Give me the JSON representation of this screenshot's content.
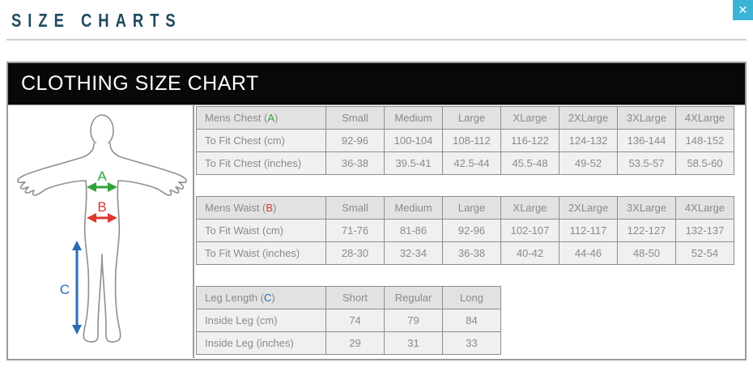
{
  "page": {
    "title": "SIZE CHARTS",
    "close_glyph": "✕"
  },
  "panel": {
    "header": "CLOTHING SIZE CHART"
  },
  "colors": {
    "title_teal": "#1e4a5e",
    "close_cyan": "#3cb4d7",
    "table_border": "#8d8d8d",
    "header_cell_bg": "#e2e2e2",
    "data_cell_bg": "#f0f0f0",
    "table_text": "#8a8a8a",
    "chest_green": "#2fa43c",
    "waist_red": "#e0382e",
    "leg_blue": "#2a6cb5"
  },
  "diagram": {
    "figure": "male-body-outline-front",
    "labels": [
      {
        "id": "A",
        "meaning": "chest",
        "color": "#2fa43c"
      },
      {
        "id": "B",
        "meaning": "waist",
        "color": "#e0382e"
      },
      {
        "id": "C",
        "meaning": "inside-leg",
        "color": "#2a6cb5"
      }
    ]
  },
  "tables": [
    {
      "label": {
        "prefix": "Mens Chest (",
        "letter": "A",
        "suffix": ")",
        "color": "#2fa43c"
      },
      "columns": [
        "Small",
        "Medium",
        "Large",
        "XLarge",
        "2XLarge",
        "3XLarge",
        "4XLarge"
      ],
      "rows": [
        {
          "label": "To Fit Chest (cm)",
          "values": [
            "92-96",
            "100-104",
            "108-112",
            "116-122",
            "124-132",
            "136-144",
            "148-152"
          ]
        },
        {
          "label": "To Fit Chest (inches)",
          "values": [
            "36-38",
            "39.5-41",
            "42.5-44",
            "45.5-48",
            "49-52",
            "53.5-57",
            "58.5-60"
          ]
        }
      ]
    },
    {
      "label": {
        "prefix": "Mens Waist (",
        "letter": "B",
        "suffix": ")",
        "color": "#e0382e"
      },
      "columns": [
        "Small",
        "Medium",
        "Large",
        "XLarge",
        "2XLarge",
        "3XLarge",
        "4XLarge"
      ],
      "rows": [
        {
          "label": "To Fit Waist (cm)",
          "values": [
            "71-76",
            "81-86",
            "92-96",
            "102-107",
            "112-117",
            "122-127",
            "132-137"
          ]
        },
        {
          "label": "To Fit Waist (inches)",
          "values": [
            "28-30",
            "32-34",
            "36-38",
            "40-42",
            "44-46",
            "48-50",
            "52-54"
          ]
        }
      ]
    },
    {
      "label": {
        "prefix": "Leg Length (",
        "letter": "C",
        "suffix": ")",
        "color": "#2a6cb5"
      },
      "columns": [
        "Short",
        "Regular",
        "Long"
      ],
      "rows": [
        {
          "label": "Inside Leg (cm)",
          "values": [
            "74",
            "79",
            "84"
          ]
        },
        {
          "label": "Inside Leg (inches)",
          "values": [
            "29",
            "31",
            "33"
          ]
        }
      ]
    }
  ]
}
